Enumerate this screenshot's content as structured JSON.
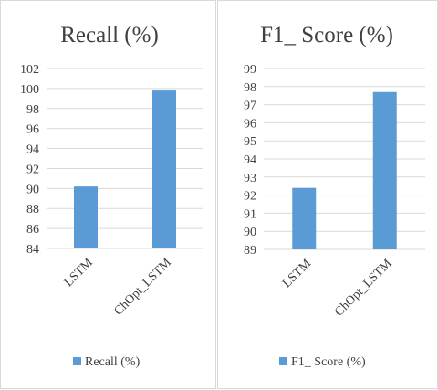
{
  "chart_data": [
    {
      "type": "bar",
      "title": "Recall (%)",
      "categories": [
        "LSTM",
        "ChOpt_LSTM"
      ],
      "series": [
        {
          "name": "Recall (%)",
          "values": [
            90.2,
            99.8
          ]
        }
      ],
      "ylim": [
        84,
        102
      ],
      "yticks": [
        "84",
        "86",
        "88",
        "90",
        "92",
        "94",
        "96",
        "98",
        "100",
        "102"
      ],
      "grid": true,
      "legend": "bottom",
      "color": "#5b9bd5"
    },
    {
      "type": "bar",
      "title": "F1_ Score (%)",
      "categories": [
        "LSTM",
        "ChOpt_LSTM"
      ],
      "series": [
        {
          "name": "F1_ Score (%)",
          "values": [
            92.4,
            97.7
          ]
        }
      ],
      "ylim": [
        89,
        99
      ],
      "yticks": [
        "89",
        "90",
        "91",
        "92",
        "93",
        "94",
        "95",
        "96",
        "97",
        "98",
        "99"
      ],
      "grid": true,
      "legend": "bottom",
      "color": "#5b9bd5"
    }
  ]
}
